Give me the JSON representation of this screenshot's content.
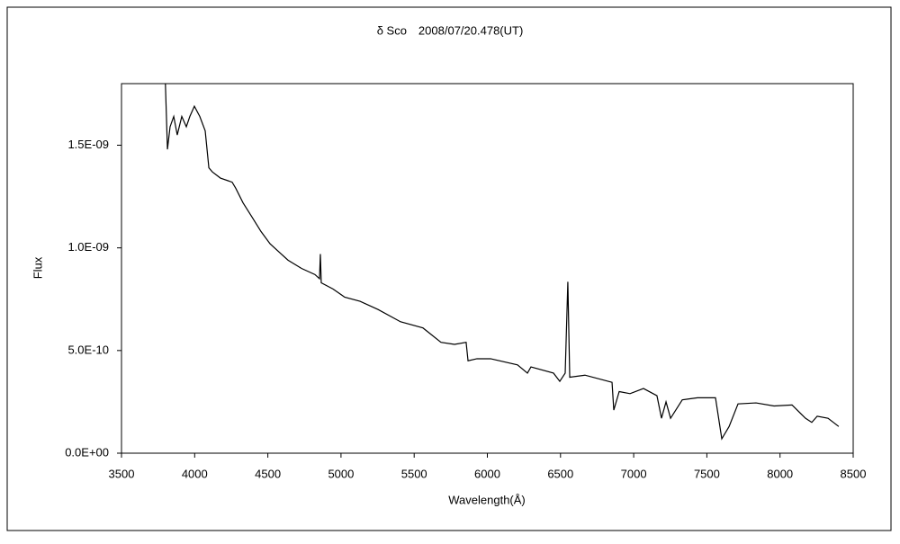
{
  "chart_data": {
    "type": "line",
    "title": "δ Sco　2008/07/20.478(UT)",
    "xlabel": "Wavelength(Å)",
    "ylabel": "Flux",
    "color": "#000000",
    "grid": false,
    "x": [
      3800,
      3814,
      3832,
      3857,
      3881,
      3912,
      3943,
      3967,
      3998,
      4035,
      4072,
      4097,
      4121,
      4176,
      4256,
      4281,
      4330,
      4392,
      4453,
      4515,
      4576,
      4638,
      4730,
      4822,
      4853,
      4859,
      4865,
      4945,
      5025,
      5130,
      5253,
      5407,
      5560,
      5683,
      5776,
      5855,
      5868,
      5929,
      6022,
      6206,
      6274,
      6298,
      6452,
      6495,
      6532,
      6550,
      6563,
      6667,
      6852,
      6864,
      6901,
      6975,
      7067,
      7159,
      7190,
      7221,
      7252,
      7332,
      7436,
      7559,
      7602,
      7652,
      7713,
      7836,
      7959,
      8082,
      8174,
      8217,
      8254,
      8328,
      8401
    ],
    "values": [
      1.8e-09,
      1.48e-09,
      1.59e-09,
      1.64e-09,
      1.55e-09,
      1.64e-09,
      1.59e-09,
      1.64e-09,
      1.69e-09,
      1.64e-09,
      1.57e-09,
      1.39e-09,
      1.37e-09,
      1.34e-09,
      1.32e-09,
      1.29e-09,
      1.22e-09,
      1.15e-09,
      1.08e-09,
      1.02e-09,
      9.8e-10,
      9.4e-10,
      9e-10,
      8.7e-10,
      8.5e-10,
      9.7e-10,
      8.3e-10,
      8e-10,
      7.6e-10,
      7.4e-10,
      7e-10,
      6.4e-10,
      6.1e-10,
      5.4e-10,
      5.3e-10,
      5.4e-10,
      4.5e-10,
      4.6e-10,
      4.6e-10,
      4.3e-10,
      3.9e-10,
      4.2e-10,
      3.9e-10,
      3.5e-10,
      3.9e-10,
      8.35e-10,
      3.7e-10,
      3.8e-10,
      3.45e-10,
      2.1e-10,
      3e-10,
      2.9e-10,
      3.15e-10,
      2.8e-10,
      1.7e-10,
      2.5e-10,
      1.7e-10,
      2.6e-10,
      2.7e-10,
      2.7e-10,
      7e-11,
      1.3e-10,
      2.4e-10,
      2.45e-10,
      2.3e-10,
      2.35e-10,
      1.7e-10,
      1.5e-10,
      1.8e-10,
      1.7e-10,
      1.3e-10
    ],
    "xlim": [
      3500,
      8500
    ],
    "xticks": [
      3500,
      4000,
      4500,
      5000,
      5500,
      6000,
      6500,
      7000,
      7500,
      8000,
      8500
    ],
    "ylim": [
      0,
      1.8e-09
    ],
    "yticks": [
      {
        "value": 0,
        "label": "0.0E+00"
      },
      {
        "value": 5e-10,
        "label": "5.0E-10"
      },
      {
        "value": 1e-09,
        "label": "1.0E-09"
      },
      {
        "value": 1.5e-09,
        "label": "1.5E-09"
      }
    ]
  }
}
